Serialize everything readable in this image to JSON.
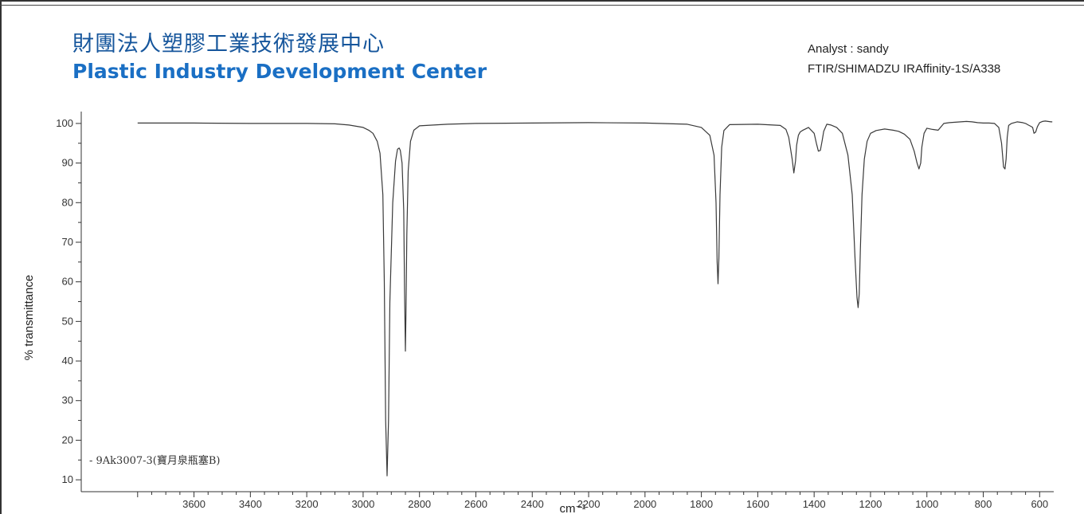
{
  "header": {
    "org_name_cn": "財團法人塑膠工業技術發展中心",
    "org_name_en": "Plastic Industry Development Center",
    "analyst": "Analyst : sandy",
    "instrument": "FTIR/SHIMADZU IRAffinity-1S/A338"
  },
  "colors": {
    "title": "#16569c",
    "title_en": "#1a6fc4",
    "trace": "#3a3a3a",
    "axis": "#333333"
  },
  "chart_data": {
    "type": "line",
    "title": "",
    "xlabel": "cm⁻¹",
    "ylabel": "% transmittance",
    "x_reversed": true,
    "xlim": [
      4000,
      550
    ],
    "ylim": [
      7,
      103
    ],
    "x_ticks": [
      3600,
      3400,
      3200,
      3000,
      2800,
      2600,
      2400,
      2200,
      2000,
      1800,
      1600,
      1400,
      1200,
      1000,
      800,
      600
    ],
    "y_ticks": [
      10,
      20,
      30,
      40,
      50,
      60,
      70,
      80,
      90,
      100
    ],
    "grid": false,
    "legend_position": "bottom-left",
    "series": [
      {
        "name": "9Ak3007-3(寶月泉瓶塞B)",
        "x": [
          3800,
          3600,
          3400,
          3200,
          3100,
          3050,
          3000,
          2980,
          2965,
          2950,
          2940,
          2930,
          2925,
          2920,
          2915,
          2910,
          2905,
          2895,
          2885,
          2878,
          2872,
          2868,
          2862,
          2856,
          2853,
          2850,
          2848,
          2845,
          2840,
          2832,
          2820,
          2800,
          2700,
          2600,
          2400,
          2200,
          2000,
          1850,
          1800,
          1770,
          1755,
          1748,
          1744,
          1741,
          1738,
          1734,
          1728,
          1720,
          1700,
          1600,
          1520,
          1500,
          1490,
          1478,
          1472,
          1466,
          1462,
          1456,
          1450,
          1440,
          1420,
          1400,
          1392,
          1385,
          1378,
          1372,
          1366,
          1355,
          1340,
          1320,
          1300,
          1280,
          1265,
          1255,
          1248,
          1244,
          1240,
          1236,
          1230,
          1222,
          1212,
          1200,
          1180,
          1150,
          1120,
          1100,
          1080,
          1060,
          1045,
          1035,
          1028,
          1022,
          1018,
          1010,
          1000,
          980,
          960,
          940,
          920,
          900,
          880,
          860,
          840,
          820,
          800,
          780,
          760,
          745,
          735,
          728,
          723,
          719,
          715,
          710,
          700,
          680,
          660,
          650,
          640,
          632,
          625,
          620,
          614,
          608,
          600,
          590,
          580,
          570,
          560,
          555
        ],
        "y": [
          100.1,
          100.1,
          100.0,
          100.0,
          99.9,
          99.6,
          99.0,
          98.3,
          97.5,
          95.5,
          92.5,
          82.0,
          60.0,
          25.0,
          11.0,
          25.0,
          55.0,
          80.0,
          90.5,
          93.5,
          93.8,
          93.2,
          90.0,
          78.0,
          58.0,
          42.5,
          52.0,
          72.0,
          88.0,
          95.5,
          98.3,
          99.4,
          99.8,
          100.0,
          100.1,
          100.2,
          100.1,
          99.8,
          99.0,
          97.0,
          92.0,
          80.0,
          65.0,
          59.5,
          66.0,
          82.0,
          94.0,
          98.2,
          99.7,
          99.8,
          99.5,
          98.5,
          96.5,
          91.0,
          87.5,
          90.5,
          94.5,
          97.0,
          97.8,
          98.3,
          99.0,
          97.5,
          95.0,
          93.0,
          93.2,
          95.5,
          98.0,
          99.8,
          99.6,
          99.0,
          97.5,
          92.0,
          82.0,
          66.0,
          56.0,
          53.5,
          57.0,
          68.0,
          82.0,
          91.0,
          95.5,
          97.5,
          98.2,
          98.6,
          98.3,
          98.0,
          97.3,
          96.0,
          93.0,
          90.0,
          88.5,
          90.0,
          94.0,
          97.5,
          98.8,
          98.5,
          98.3,
          100.0,
          100.2,
          100.3,
          100.4,
          100.5,
          100.4,
          100.2,
          100.1,
          100.1,
          100.0,
          99.0,
          95.0,
          89.0,
          88.5,
          91.0,
          96.5,
          99.5,
          100.0,
          100.4,
          100.2,
          100.0,
          99.6,
          99.3,
          99.0,
          97.5,
          97.8,
          99.2,
          100.2,
          100.5,
          100.6,
          100.5,
          100.4,
          100.4
        ]
      }
    ]
  }
}
